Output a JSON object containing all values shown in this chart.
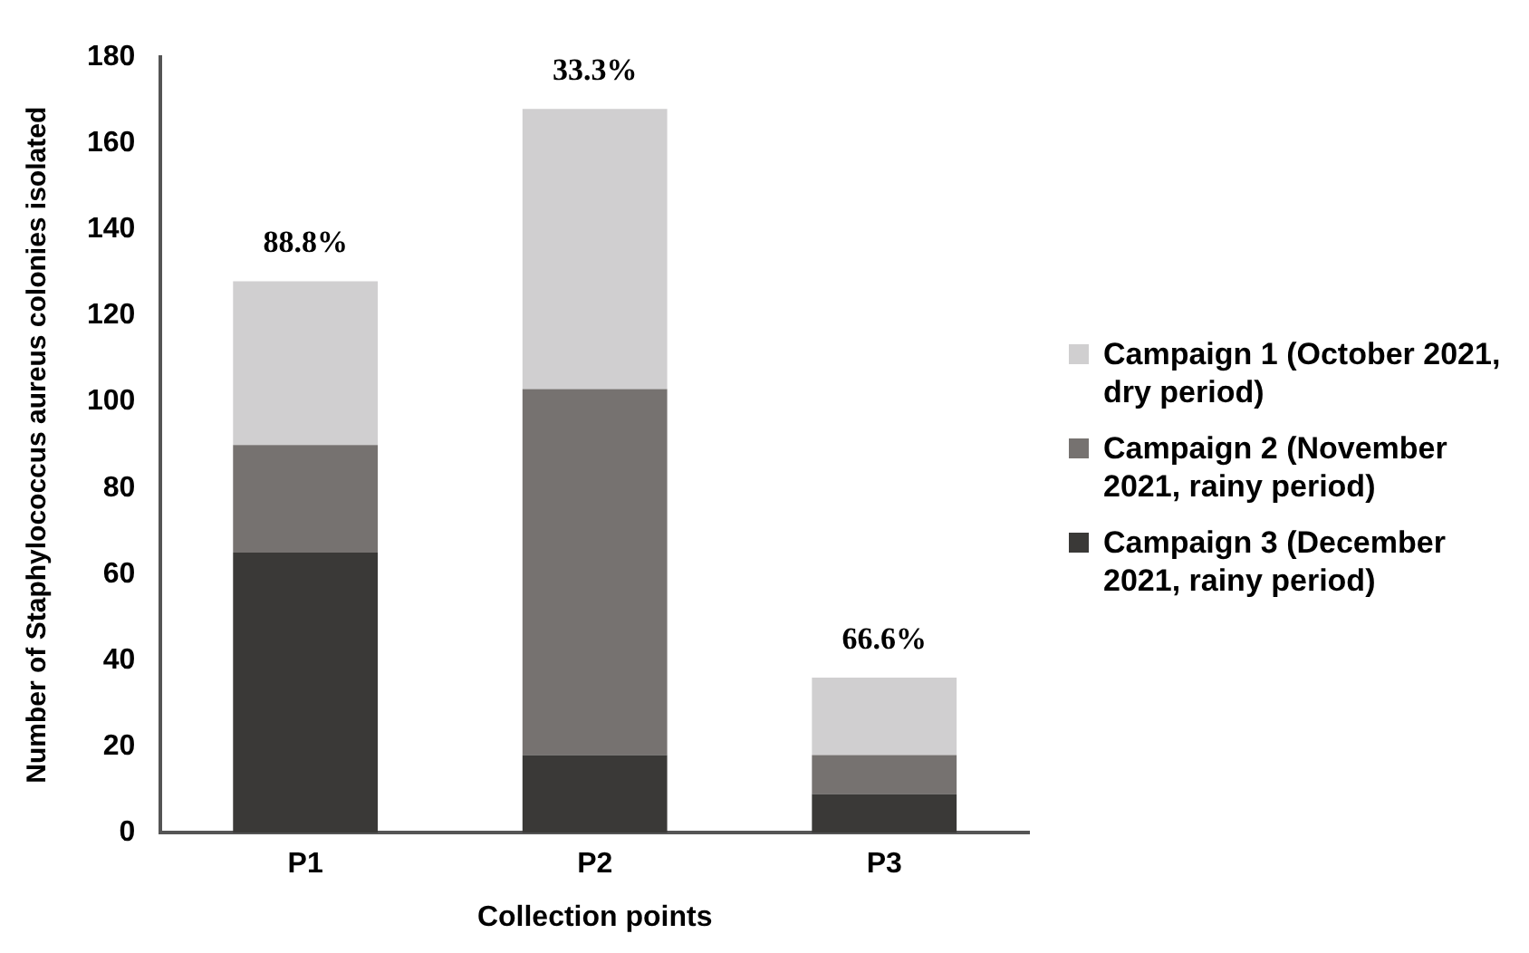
{
  "chart_data": {
    "type": "bar",
    "xlabel": "Collection points",
    "ylabel": "Number of Staphylococcus aureus colonies isolated",
    "categories": [
      "P1",
      "P2",
      "P3"
    ],
    "stacked": true,
    "legend": "right",
    "ylim": [
      0,
      180
    ],
    "yticks": [
      0,
      20,
      40,
      60,
      80,
      100,
      120,
      140,
      160,
      180
    ],
    "grid": false,
    "series": [
      {
        "name": "Campaign 3 (December 2021, rainy period)",
        "color": "#3a3937",
        "values": [
          65,
          18,
          9
        ]
      },
      {
        "name": "Campaign 2 (November 2021, rainy period)",
        "color": "#767270",
        "values": [
          25,
          85,
          9
        ]
      },
      {
        "name": "Campaign 1 (October 2021, dry period)",
        "color": "#d0cfd0",
        "values": [
          38,
          65,
          18
        ]
      }
    ],
    "annotations": [
      {
        "text": "88.8%",
        "x": "P1",
        "y": 128
      },
      {
        "text": "33.3%",
        "x": "P2",
        "y": 168
      },
      {
        "text": "66.6%",
        "x": "P3",
        "y": 36
      }
    ]
  }
}
